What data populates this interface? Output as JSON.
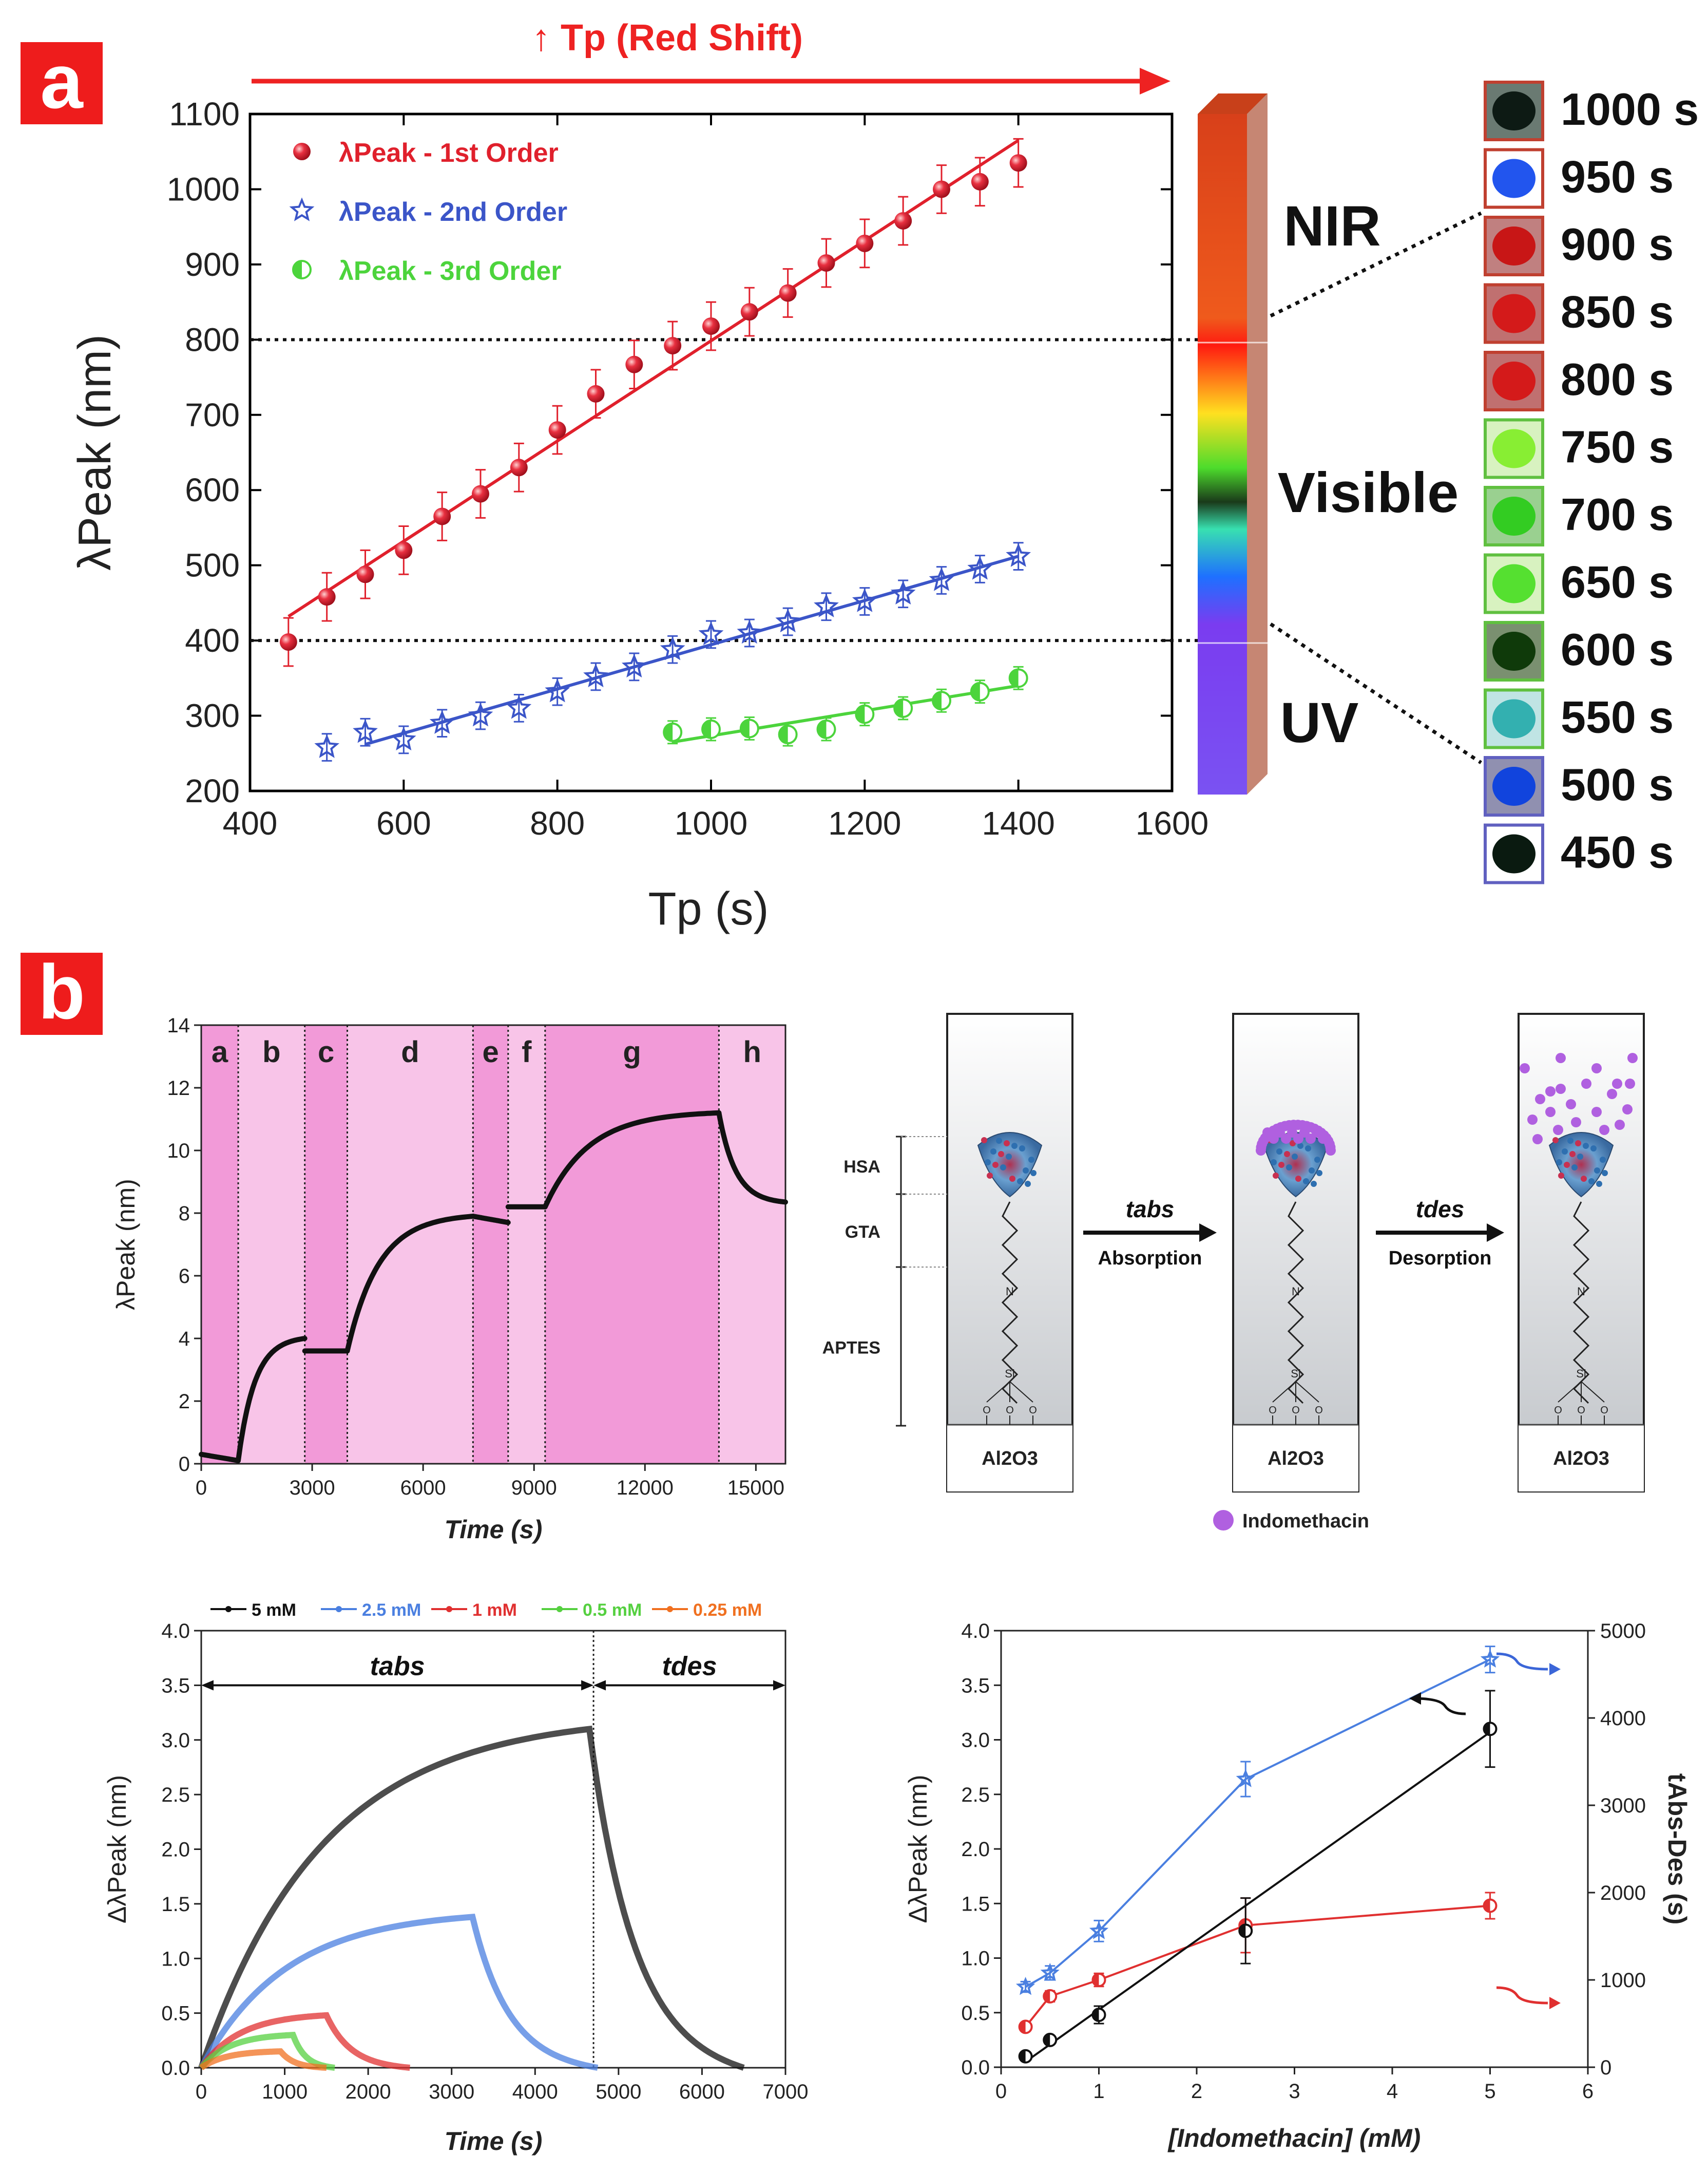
{
  "panel_a_label": "a",
  "panel_b_label": "b",
  "chart_data": [
    {
      "id": "a",
      "type": "scatter",
      "header": "↑ Tp (Red Shift)",
      "xlabel": "Tp (s)",
      "ylabel": "λPeak (nm)",
      "xlim": [
        400,
        1600
      ],
      "ylim": [
        200,
        1100
      ],
      "xticks": [
        400,
        600,
        800,
        1000,
        1200,
        1400,
        1600
      ],
      "yticks": [
        200,
        300,
        400,
        500,
        600,
        700,
        800,
        900,
        1000,
        1100
      ],
      "hlines": [
        400,
        800
      ],
      "series": [
        {
          "name": "λPeak - 1st Order",
          "color": "#e0202c",
          "marker": "sphere",
          "x": [
            450,
            500,
            550,
            600,
            650,
            700,
            750,
            800,
            850,
            900,
            950,
            1000,
            1050,
            1100,
            1150,
            1200,
            1250,
            1300,
            1350,
            1400
          ],
          "y": [
            398,
            458,
            488,
            520,
            565,
            595,
            630,
            680,
            728,
            767,
            792,
            818,
            837,
            862,
            902,
            928,
            958,
            1000,
            1010,
            1035
          ],
          "err": 22,
          "fit": [
            [
              450,
              432
            ],
            [
              1400,
              1065
            ]
          ]
        },
        {
          "name": "λPeak - 2nd Order",
          "color": "#3b55c8",
          "marker": "star",
          "x": [
            500,
            550,
            600,
            650,
            700,
            750,
            800,
            850,
            900,
            950,
            1000,
            1050,
            1100,
            1150,
            1200,
            1250,
            1300,
            1350,
            1400
          ],
          "y": [
            258,
            278,
            268,
            290,
            300,
            310,
            332,
            352,
            365,
            388,
            408,
            410,
            425,
            445,
            452,
            462,
            480,
            495,
            512
          ],
          "err": 18,
          "fit": [
            [
              550,
              262
            ],
            [
              1400,
              512
            ]
          ]
        },
        {
          "name": "λPeak - 3rd Order",
          "color": "#4cd43c",
          "marker": "half",
          "x": [
            950,
            1000,
            1050,
            1100,
            1150,
            1200,
            1250,
            1300,
            1350,
            1400
          ],
          "y": [
            278,
            282,
            283,
            275,
            282,
            302,
            310,
            320,
            332,
            350
          ],
          "err": 15,
          "fit": [
            [
              950,
              265
            ],
            [
              1400,
              340
            ]
          ]
        }
      ],
      "spectrum_labels": [
        "NIR",
        "Visible",
        "UV"
      ],
      "thumbnails": [
        {
          "label": "1000 s",
          "color": "#0d1a14",
          "border": "#c04030",
          "bg": "#6a7a72"
        },
        {
          "label": "950 s",
          "color": "#2255ee",
          "border": "#c04030",
          "bg": "#ffffff"
        },
        {
          "label": "900 s",
          "color": "#c81616",
          "border": "#c04030",
          "bg": "#c08080"
        },
        {
          "label": "850 s",
          "color": "#d41a1a",
          "border": "#c04030",
          "bg": "#c07070"
        },
        {
          "label": "800 s",
          "color": "#d41a1a",
          "border": "#c04030",
          "bg": "#c07070"
        },
        {
          "label": "750 s",
          "color": "#88ee33",
          "border": "#60c040",
          "bg": "#d8f2c0"
        },
        {
          "label": "700 s",
          "color": "#33cc22",
          "border": "#60c040",
          "bg": "#9ad090"
        },
        {
          "label": "650 s",
          "color": "#55e030",
          "border": "#60c040",
          "bg": "#d8f2c0"
        },
        {
          "label": "600 s",
          "color": "#0f3a0a",
          "border": "#60c040",
          "bg": "#7a9070"
        },
        {
          "label": "550 s",
          "color": "#33b0b0",
          "border": "#60c040",
          "bg": "#c0e4e4"
        },
        {
          "label": "500 s",
          "color": "#1144dd",
          "border": "#6060c0",
          "bg": "#9090b0"
        },
        {
          "label": "450 s",
          "color": "#0a1a10",
          "border": "#6060c0",
          "bg": "#ffffff"
        }
      ]
    },
    {
      "id": "b1",
      "type": "line",
      "xlabel": "Time (s)",
      "ylabel": "λPeak (nm)",
      "xlim": [
        0,
        15800
      ],
      "ylim": [
        0,
        14
      ],
      "xticks": [
        0,
        3000,
        6000,
        9000,
        12000,
        15000
      ],
      "yticks": [
        0,
        2,
        4,
        6,
        8,
        10,
        12,
        14
      ],
      "regions": [
        {
          "label": "a",
          "start": 0,
          "end": 1000
        },
        {
          "label": "b",
          "start": 1000,
          "end": 2800
        },
        {
          "label": "c",
          "start": 2800,
          "end": 3950
        },
        {
          "label": "d",
          "start": 3950,
          "end": 7350
        },
        {
          "label": "e",
          "start": 7350,
          "end": 8300
        },
        {
          "label": "f",
          "start": 8300,
          "end": 9300
        },
        {
          "label": "g",
          "start": 9300,
          "end": 14000
        },
        {
          "label": "h",
          "start": 14000,
          "end": 15800
        }
      ],
      "segments": [
        {
          "t0": 0,
          "t1": 1000,
          "v0": 0.3,
          "v1": 0.1,
          "kind": "linear"
        },
        {
          "t0": 1000,
          "t1": 2800,
          "v0": 0.1,
          "v1": 4.0,
          "kind": "rise"
        },
        {
          "t0": 2800,
          "t1": 3950,
          "v0": 3.6,
          "v1": 3.6,
          "kind": "linear"
        },
        {
          "t0": 3950,
          "t1": 7350,
          "v0": 3.6,
          "v1": 7.9,
          "kind": "rise"
        },
        {
          "t0": 7350,
          "t1": 8300,
          "v0": 7.9,
          "v1": 7.7,
          "kind": "linear"
        },
        {
          "t0": 8300,
          "t1": 9300,
          "v0": 8.2,
          "v1": 8.2,
          "kind": "linear"
        },
        {
          "t0": 9300,
          "t1": 14000,
          "v0": 8.2,
          "v1": 11.2,
          "kind": "rise"
        },
        {
          "t0": 14000,
          "t1": 15800,
          "v0": 11.2,
          "v1": 8.3,
          "kind": "fall"
        }
      ]
    },
    {
      "id": "b3",
      "type": "line",
      "xlabel": "Time (s)",
      "ylabel": "ΔλPeak (nm)",
      "xlim": [
        0,
        7000
      ],
      "ylim": [
        0,
        4.0
      ],
      "xticks": [
        0,
        1000,
        2000,
        3000,
        4000,
        5000,
        6000,
        7000
      ],
      "yticks": [
        0.0,
        0.5,
        1.0,
        1.5,
        2.0,
        2.5,
        3.0,
        3.5,
        4.0
      ],
      "vline": 4700,
      "arrows": [
        {
          "label": "tabs",
          "from": 0,
          "to": 4700,
          "y": 3.5
        },
        {
          "label": "tdes",
          "from": 4700,
          "to": 7000,
          "y": 3.5
        }
      ],
      "series": [
        {
          "name": "5 mM",
          "color": "#111111",
          "peak": 3.1,
          "tpeak": 4650,
          "tend": 6500
        },
        {
          "name": "2.5 mM",
          "color": "#4a7fe0",
          "peak": 1.38,
          "tpeak": 3250,
          "tend": 4750
        },
        {
          "name": "1 mM",
          "color": "#e03030",
          "peak": 0.48,
          "tpeak": 1500,
          "tend": 2500
        },
        {
          "name": "0.5 mM",
          "color": "#55d040",
          "peak": 0.3,
          "tpeak": 1100,
          "tend": 1600
        },
        {
          "name": "0.25 mM",
          "color": "#f07020",
          "peak": 0.15,
          "tpeak": 950,
          "tend": 1500
        }
      ]
    },
    {
      "id": "b4",
      "type": "line",
      "xlabel": "[Indomethacin] (mM)",
      "ylabel": "ΔλPeak (nm)",
      "y2label": "tAbs-Des (s)",
      "xlim": [
        0,
        6
      ],
      "ylim": [
        0,
        4.0
      ],
      "y2lim": [
        0,
        5000
      ],
      "xticks": [
        0,
        1,
        2,
        3,
        4,
        5,
        6
      ],
      "yticks": [
        0.0,
        0.5,
        1.0,
        1.5,
        2.0,
        2.5,
        3.0,
        3.5,
        4.0
      ],
      "y2ticks": [
        0,
        1000,
        2000,
        3000,
        4000,
        5000
      ],
      "series": [
        {
          "name": "tAbs-Des",
          "axis": "right",
          "color": "#4a7fe0",
          "marker": "star",
          "x": [
            0.25,
            0.5,
            1,
            2.5,
            5
          ],
          "y": [
            920,
            1080,
            1560,
            3300,
            4670
          ],
          "err": [
            60,
            80,
            120,
            200,
            150
          ],
          "line": "connect"
        },
        {
          "name": "ΔλPeak (red)",
          "axis": "left",
          "color": "#e03030",
          "marker": "half",
          "x": [
            0.25,
            0.5,
            1,
            2.5,
            5
          ],
          "y": [
            0.37,
            0.65,
            0.8,
            1.3,
            1.48
          ],
          "err": [
            0.03,
            0.05,
            0.06,
            0.25,
            0.12
          ],
          "line": "connect"
        },
        {
          "name": "ΔλPeak (black)",
          "axis": "left",
          "color": "#111111",
          "marker": "half",
          "x": [
            0.25,
            0.5,
            1,
            2.5,
            5
          ],
          "y": [
            0.1,
            0.25,
            0.48,
            1.25,
            3.1
          ],
          "err": [
            0.02,
            0.03,
            0.08,
            0.3,
            0.35
          ],
          "fit": [
            [
              0.25,
              0.05
            ],
            [
              5,
              3.07
            ]
          ]
        }
      ]
    }
  ],
  "schematic": {
    "layers": [
      "HSA",
      "GTA",
      "APTES"
    ],
    "substrate": "Al2O3",
    "step1_label": "tabs",
    "step1_text": "Absorption",
    "step2_label": "tdes",
    "step2_text": "Desorption",
    "legend": "Indomethacin",
    "atom_n": "N",
    "atom_si": "Si",
    "atom_o": "O"
  }
}
